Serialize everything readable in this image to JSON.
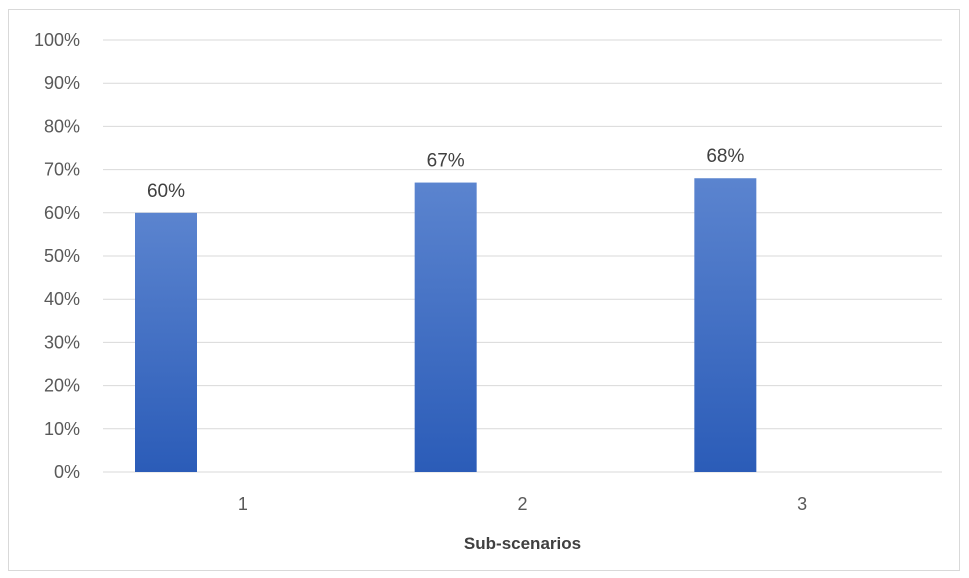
{
  "chart_data": {
    "type": "bar",
    "title": "",
    "xlabel": "Sub-scenarios",
    "ylabel": "",
    "categories": [
      "1",
      "2",
      "3"
    ],
    "series": [
      {
        "values": [
          60,
          67,
          68
        ],
        "data_labels": [
          "60%",
          "67%",
          "68%"
        ]
      }
    ],
    "ylim": [
      0,
      100
    ],
    "yticks": [
      0,
      10,
      20,
      30,
      40,
      50,
      60,
      70,
      80,
      90,
      100
    ],
    "ytick_labels": [
      "0%",
      "10%",
      "20%",
      "30%",
      "40%",
      "50%",
      "60%",
      "70%",
      "80%",
      "90%",
      "100%"
    ],
    "grid": true,
    "legend": "none",
    "colors": {
      "bar_top": "#5b84cf",
      "bar_bottom": "#2b5cb8",
      "grid": "#d9d9d9",
      "text": "#595959"
    }
  }
}
